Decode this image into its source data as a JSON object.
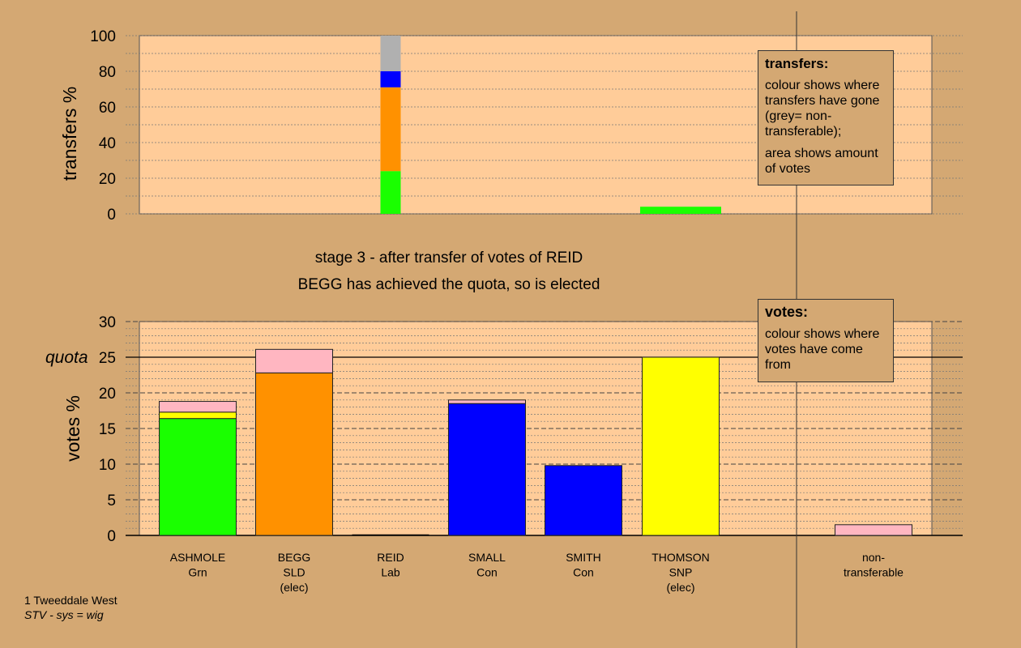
{
  "colors": {
    "background": "#d4a873",
    "plot_bg": "#ffcc99",
    "green": "#1aff00",
    "orange": "#ff9100",
    "blue": "#0000ff",
    "yellow": "#ffff00",
    "pink": "#ffb6c1",
    "grey": "#b0b0b0"
  },
  "header": {
    "stage": "stage 3 - after transfer of votes of REID",
    "status": "BEGG has achieved the quota, so is elected"
  },
  "transfers_box": {
    "title": "transfers:",
    "line1": "colour shows where transfers have gone (grey= non-transferable);",
    "line2": "area shows amount of votes"
  },
  "votes_box": {
    "title": "votes:",
    "line1": "colour shows where votes have come from"
  },
  "footer": {
    "place": "1 Tweeddale West",
    "system": "STV - sys = wig"
  },
  "chart_data": [
    {
      "type": "bar",
      "stacked": true,
      "ylabel": "transfers %",
      "ylim": [
        0,
        100
      ],
      "yticks": [
        0,
        20,
        40,
        60,
        80,
        100
      ],
      "categories": [
        "ASHMOLE",
        "BEGG",
        "REID",
        "SMALL",
        "SMITH",
        "THOMSON",
        "non-transferable"
      ],
      "bars": [
        {
          "category": "REID",
          "segments": [
            {
              "color": "green",
              "value": 24
            },
            {
              "color": "orange",
              "value": 47
            },
            {
              "color": "blue",
              "value": 9
            },
            {
              "color": "grey",
              "value": 20
            }
          ]
        },
        {
          "category": "THOMSON",
          "segments": [
            {
              "color": "green",
              "value": 4
            }
          ]
        }
      ]
    },
    {
      "type": "bar",
      "stacked": true,
      "ylabel": "votes %",
      "ylim": [
        0,
        30
      ],
      "yticks": [
        0,
        5,
        10,
        15,
        20,
        25,
        30
      ],
      "quota": {
        "label": "quota",
        "value": 25
      },
      "candidates": [
        {
          "name": "ASHMOLE",
          "party": "Grn",
          "note": "",
          "segments": [
            {
              "color": "green",
              "value": 16.4
            },
            {
              "color": "yellow",
              "value": 0.9
            },
            {
              "color": "pink",
              "value": 1.5
            }
          ]
        },
        {
          "name": "BEGG",
          "party": "SLD",
          "note": "(elec)",
          "segments": [
            {
              "color": "orange",
              "value": 22.8
            },
            {
              "color": "pink",
              "value": 3.3
            }
          ]
        },
        {
          "name": "REID",
          "party": "Lab",
          "note": "",
          "segments": []
        },
        {
          "name": "SMALL",
          "party": "Con",
          "note": "",
          "segments": [
            {
              "color": "blue",
              "value": 18.5
            },
            {
              "color": "pink",
              "value": 0.5
            }
          ]
        },
        {
          "name": "SMITH",
          "party": "Con",
          "note": "",
          "segments": [
            {
              "color": "blue",
              "value": 9.8
            }
          ]
        },
        {
          "name": "THOMSON",
          "party": "SNP",
          "note": "(elec)",
          "segments": [
            {
              "color": "yellow",
              "value": 25.0
            }
          ]
        },
        {
          "name": "non-",
          "party": "transferable",
          "note": "",
          "segments": [
            {
              "color": "pink",
              "value": 1.5
            }
          ]
        }
      ]
    }
  ]
}
